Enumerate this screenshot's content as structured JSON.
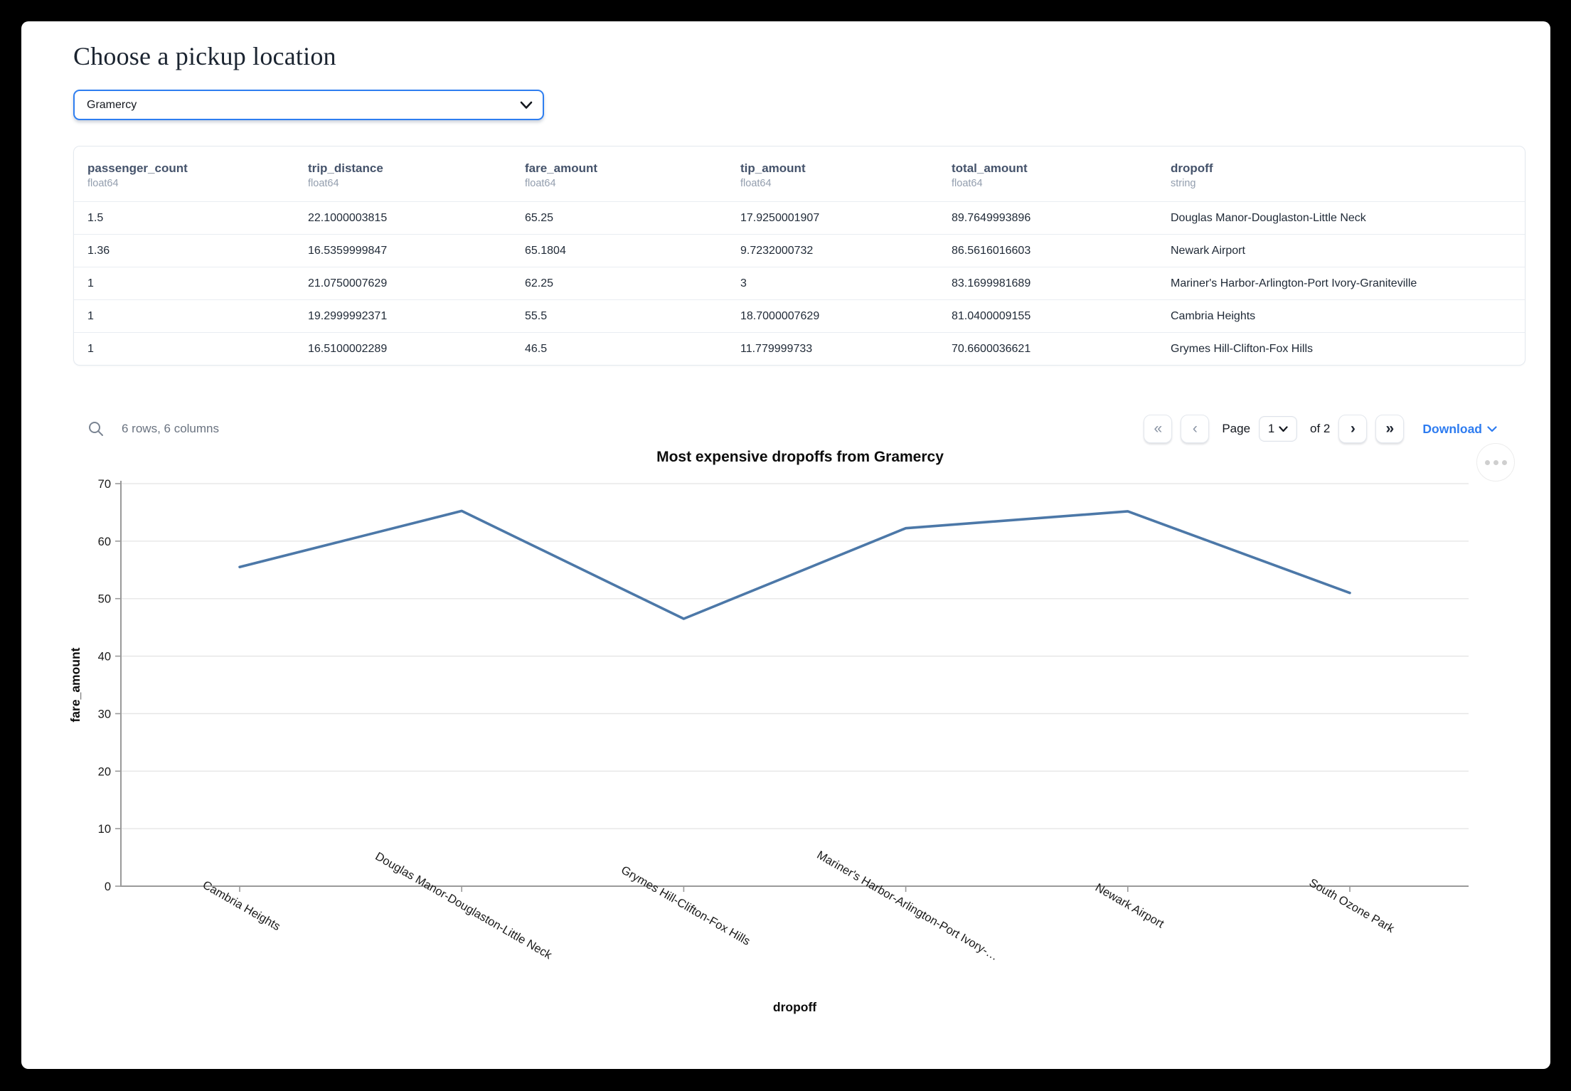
{
  "page": {
    "title": "Choose a pickup location"
  },
  "pickup_select": {
    "value": "Gramercy"
  },
  "table": {
    "columns": [
      {
        "name": "passenger_count",
        "dtype": "float64"
      },
      {
        "name": "trip_distance",
        "dtype": "float64"
      },
      {
        "name": "fare_amount",
        "dtype": "float64"
      },
      {
        "name": "tip_amount",
        "dtype": "float64"
      },
      {
        "name": "total_amount",
        "dtype": "float64"
      },
      {
        "name": "dropoff",
        "dtype": "string"
      }
    ],
    "rows": [
      [
        "1.5",
        "22.1000003815",
        "65.25",
        "17.9250001907",
        "89.7649993896",
        "Douglas Manor-Douglaston-Little Neck"
      ],
      [
        "1.36",
        "16.5359999847",
        "65.1804",
        "9.7232000732",
        "86.5616016603",
        "Newark Airport"
      ],
      [
        "1",
        "21.0750007629",
        "62.25",
        "3",
        "83.1699981689",
        "Mariner's Harbor-Arlington-Port Ivory-Graniteville"
      ],
      [
        "1",
        "19.2999992371",
        "55.5",
        "18.7000007629",
        "81.0400009155",
        "Cambria Heights"
      ],
      [
        "1",
        "16.5100002289",
        "46.5",
        "11.779999733",
        "70.6600036621",
        "Grymes Hill-Clifton-Fox Hills"
      ]
    ],
    "summary": "6 rows, 6 columns"
  },
  "pagination": {
    "first": "«",
    "prev": "‹",
    "next": "›",
    "last": "»",
    "page_label": "Page",
    "page_value": "1",
    "of_label": "of 2",
    "download_label": "Download"
  },
  "chart_data": {
    "type": "line",
    "title": "Most expensive dropoffs from Gramercy",
    "categories": [
      "Cambria Heights",
      "Douglas Manor-Douglaston-Little Neck",
      "Grymes Hill-Clifton-Fox Hills",
      "Mariner's Harbor-Arlington-Port Ivory-…",
      "Newark Airport",
      "South Ozone Park"
    ],
    "values": [
      55.5,
      65.25,
      46.5,
      62.25,
      65.1804,
      51
    ],
    "xlabel": "dropoff",
    "ylabel": "fare_amount",
    "ylim": [
      0,
      70
    ],
    "yticks": [
      0,
      10,
      20,
      30,
      40,
      50,
      60,
      70
    ],
    "grid": true,
    "legend": false,
    "line_color": "#4c78a8"
  },
  "colors": {
    "accent_blue": "#2e7ef0",
    "link_blue": "#2e7cf0",
    "header_slate": "#45536b",
    "line_blue": "#4c78a8"
  }
}
